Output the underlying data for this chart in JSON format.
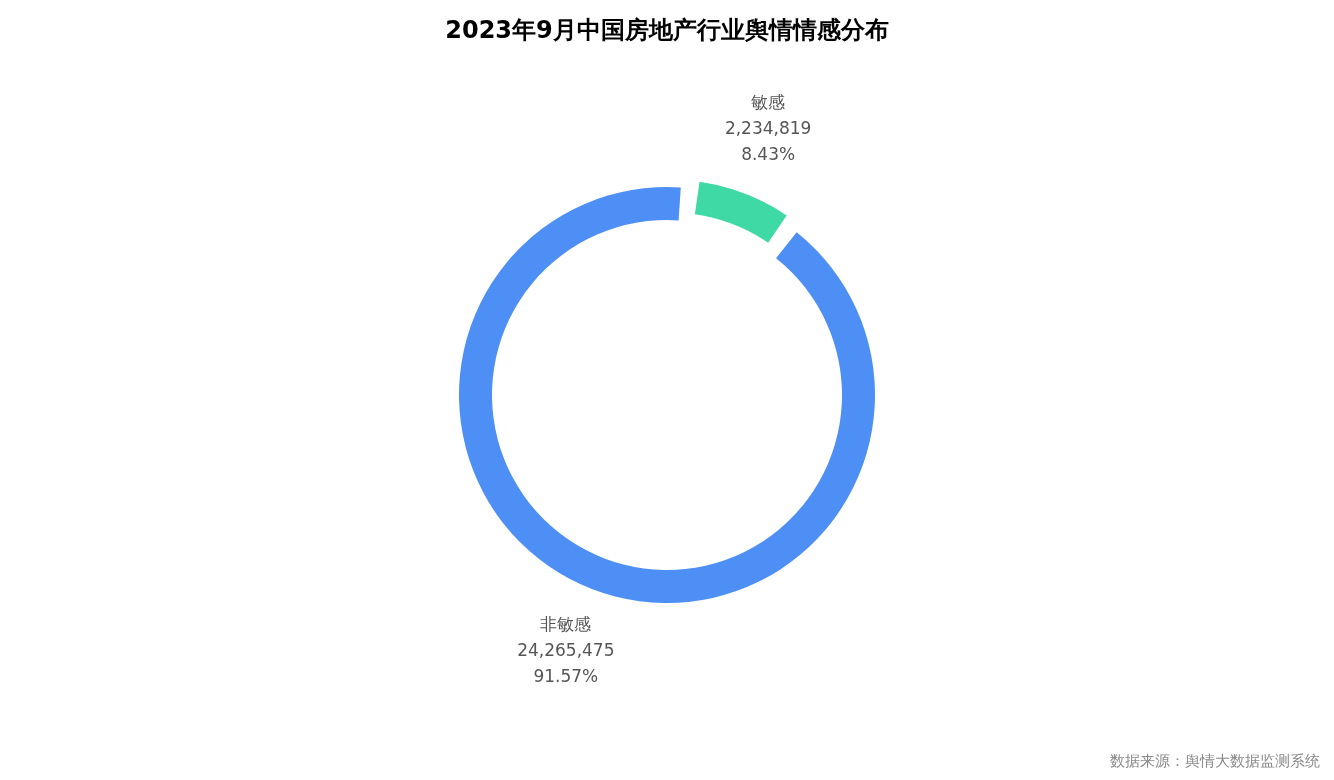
{
  "chart_data": {
    "type": "donut",
    "title": "2023年9月中国房地产行业舆情情感分布",
    "categories": [
      "敏感",
      "非敏感"
    ],
    "values": [
      2234819,
      24265475
    ],
    "colors": [
      "#3fd9a6",
      "#4e8ff5"
    ],
    "value_labels": [
      "2,234,819\n8.43%",
      "24,265,475\n91.57%"
    ],
    "annotations": [
      "数据来源：舆情大数据监测系统"
    ]
  }
}
